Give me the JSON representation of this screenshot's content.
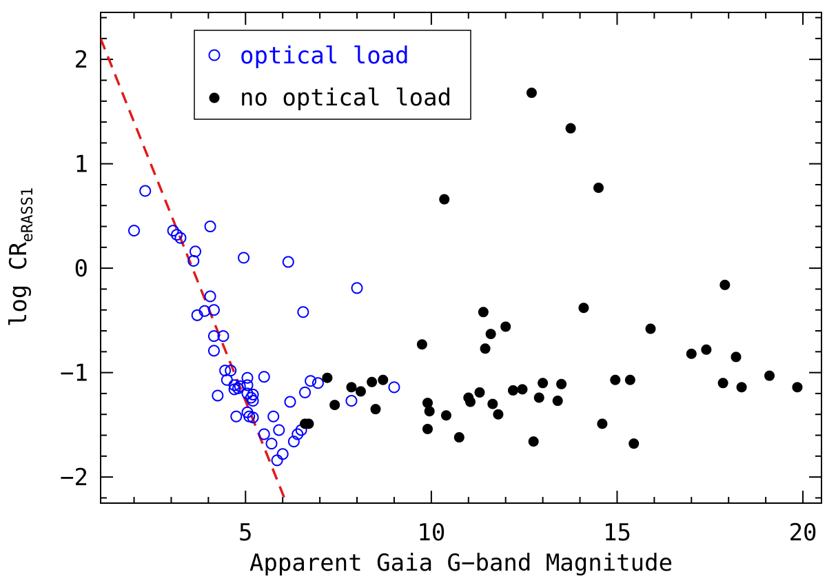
{
  "chart_data": {
    "type": "scatter",
    "title": "",
    "xlabel": "Apparent Gaia G−band Magnitude",
    "ylabel": {
      "main": "log CR",
      "subscript": "eRASS1"
    },
    "xlim": [
      1.1,
      20.5
    ],
    "ylim": [
      -2.25,
      2.45
    ],
    "x_ticks": [
      5,
      10,
      15,
      20
    ],
    "x_tick_labels": [
      "5",
      "10",
      "15",
      "20"
    ],
    "y_ticks": [
      -2,
      -1,
      0,
      1,
      2
    ],
    "y_tick_labels": [
      "−2",
      "−1",
      "0",
      "1",
      "2"
    ],
    "grid": false,
    "legend_position": "top-left",
    "series": [
      {
        "name": "optical load",
        "marker": "open-circle",
        "color": "#0000ff",
        "points": [
          [
            2.0,
            0.36
          ],
          [
            2.3,
            0.74
          ],
          [
            3.05,
            0.36
          ],
          [
            3.15,
            0.32
          ],
          [
            3.25,
            0.29
          ],
          [
            3.6,
            0.07
          ],
          [
            3.65,
            0.16
          ],
          [
            3.7,
            -0.45
          ],
          [
            3.9,
            -0.41
          ],
          [
            4.05,
            0.4
          ],
          [
            4.05,
            -0.27
          ],
          [
            4.15,
            -0.4
          ],
          [
            4.15,
            -0.65
          ],
          [
            4.15,
            -0.79
          ],
          [
            4.25,
            -1.22
          ],
          [
            4.4,
            -0.65
          ],
          [
            4.45,
            -0.98
          ],
          [
            4.5,
            -1.07
          ],
          [
            4.6,
            -0.98
          ],
          [
            4.7,
            -1.12
          ],
          [
            4.7,
            -1.16
          ],
          [
            4.75,
            -1.42
          ],
          [
            4.8,
            -1.15
          ],
          [
            4.85,
            -1.13
          ],
          [
            4.95,
            0.1
          ],
          [
            5.05,
            -1.05
          ],
          [
            5.05,
            -1.12
          ],
          [
            5.05,
            -1.2
          ],
          [
            5.05,
            -1.38
          ],
          [
            5.1,
            -1.42
          ],
          [
            5.15,
            -1.24
          ],
          [
            5.2,
            -1.27
          ],
          [
            5.2,
            -1.21
          ],
          [
            5.2,
            -1.43
          ],
          [
            5.5,
            -1.04
          ],
          [
            5.5,
            -1.59
          ],
          [
            5.7,
            -1.68
          ],
          [
            5.75,
            -1.42
          ],
          [
            5.85,
            -1.84
          ],
          [
            5.9,
            -1.55
          ],
          [
            6.0,
            -1.78
          ],
          [
            6.15,
            0.06
          ],
          [
            6.2,
            -1.28
          ],
          [
            6.3,
            -1.66
          ],
          [
            6.4,
            -1.59
          ],
          [
            6.5,
            -1.55
          ],
          [
            6.55,
            -0.42
          ],
          [
            6.6,
            -1.19
          ],
          [
            6.75,
            -1.08
          ],
          [
            6.95,
            -1.1
          ],
          [
            7.85,
            -1.27
          ],
          [
            8.0,
            -0.19
          ],
          [
            9.0,
            -1.14
          ]
        ]
      },
      {
        "name": "no optical load",
        "marker": "filled-circle",
        "color": "#000000",
        "points": [
          [
            6.6,
            -1.49
          ],
          [
            6.7,
            -1.49
          ],
          [
            7.2,
            -1.05
          ],
          [
            7.4,
            -1.31
          ],
          [
            7.85,
            -1.14
          ],
          [
            8.1,
            -1.18
          ],
          [
            8.4,
            -1.09
          ],
          [
            8.5,
            -1.35
          ],
          [
            8.7,
            -1.07
          ],
          [
            9.75,
            -0.73
          ],
          [
            9.9,
            -1.29
          ],
          [
            9.9,
            -1.54
          ],
          [
            9.95,
            -1.37
          ],
          [
            10.35,
            0.66
          ],
          [
            10.4,
            -1.41
          ],
          [
            10.75,
            -1.62
          ],
          [
            11.0,
            -1.24
          ],
          [
            11.05,
            -1.28
          ],
          [
            11.3,
            -1.19
          ],
          [
            11.4,
            -0.42
          ],
          [
            11.45,
            -0.77
          ],
          [
            11.6,
            -0.63
          ],
          [
            11.65,
            -1.3
          ],
          [
            11.8,
            -1.4
          ],
          [
            12.0,
            -0.56
          ],
          [
            12.2,
            -1.17
          ],
          [
            12.45,
            -1.16
          ],
          [
            12.7,
            1.68
          ],
          [
            12.75,
            -1.66
          ],
          [
            12.9,
            -1.24
          ],
          [
            13.0,
            -1.1
          ],
          [
            13.4,
            -1.27
          ],
          [
            13.5,
            -1.11
          ],
          [
            13.75,
            1.34
          ],
          [
            14.1,
            -0.38
          ],
          [
            14.5,
            0.77
          ],
          [
            14.6,
            -1.49
          ],
          [
            14.95,
            -1.07
          ],
          [
            15.35,
            -1.07
          ],
          [
            15.45,
            -1.68
          ],
          [
            15.9,
            -0.58
          ],
          [
            17.0,
            -0.82
          ],
          [
            17.4,
            -0.78
          ],
          [
            17.85,
            -1.1
          ],
          [
            17.9,
            -0.16
          ],
          [
            18.2,
            -0.85
          ],
          [
            18.35,
            -1.14
          ],
          [
            19.1,
            -1.03
          ],
          [
            19.85,
            -1.14
          ]
        ]
      }
    ],
    "reference_line": {
      "style": "dashed",
      "color": "#e11b1b",
      "from": [
        1.1,
        2.2
      ],
      "to": [
        6.1,
        -2.25
      ]
    }
  }
}
